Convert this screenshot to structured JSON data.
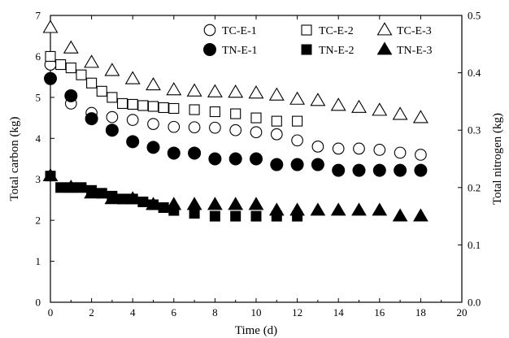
{
  "chart_data": {
    "type": "scatter",
    "xlabel": "Time (d)",
    "ylabel": "Total carbon (kg)",
    "y2label": "Total nitrogen (kg)",
    "xlim": [
      0,
      20
    ],
    "ylim": [
      0,
      7
    ],
    "y2lim": [
      0.0,
      0.5
    ],
    "xticks": [
      "0",
      "2",
      "4",
      "6",
      "8",
      "10",
      "12",
      "14",
      "16",
      "18",
      "20"
    ],
    "yticks": [
      "0",
      "1",
      "2",
      "3",
      "4",
      "5",
      "6",
      "7"
    ],
    "y2ticks": [
      "0.0",
      "0.1",
      "0.2",
      "0.3",
      "0.4",
      "0.5"
    ],
    "grid": false,
    "legend_position": "top-right",
    "series": [
      {
        "name": "TC-E-1",
        "axis": "left",
        "marker": "circle-open",
        "x": [
          0,
          1,
          2,
          3,
          4,
          5,
          6,
          7,
          8,
          9,
          10,
          11,
          12,
          13,
          14,
          15,
          16,
          17,
          18
        ],
        "y": [
          5.8,
          4.85,
          4.62,
          4.52,
          4.45,
          4.35,
          4.28,
          4.27,
          4.26,
          4.2,
          4.15,
          4.1,
          3.95,
          3.8,
          3.75,
          3.75,
          3.72,
          3.65,
          3.6
        ]
      },
      {
        "name": "TC-E-2",
        "axis": "left",
        "marker": "square-open",
        "x": [
          0,
          0.5,
          1,
          1.5,
          2,
          2.5,
          3,
          3.5,
          4,
          4.5,
          5,
          5.5,
          6,
          7,
          8,
          9,
          10,
          11,
          12
        ],
        "y": [
          6.0,
          5.8,
          5.72,
          5.55,
          5.35,
          5.15,
          5.0,
          4.85,
          4.83,
          4.8,
          4.78,
          4.75,
          4.73,
          4.7,
          4.65,
          4.6,
          4.5,
          4.42,
          4.42
        ]
      },
      {
        "name": "TC-E-3",
        "axis": "left",
        "marker": "triangle-open",
        "x": [
          0,
          1,
          2,
          3,
          4,
          5,
          6,
          7,
          8,
          9,
          10,
          11,
          12,
          13,
          14,
          15,
          16,
          17,
          18
        ],
        "y": [
          6.7,
          6.2,
          5.85,
          5.65,
          5.45,
          5.3,
          5.18,
          5.15,
          5.13,
          5.12,
          5.1,
          5.05,
          4.95,
          4.92,
          4.8,
          4.75,
          4.68,
          4.58,
          4.5
        ]
      },
      {
        "name": "TN-E-1",
        "axis": "right",
        "marker": "circle-filled",
        "x": [
          0,
          1,
          2,
          3,
          4,
          5,
          6,
          7,
          8,
          9,
          10,
          11,
          12,
          13,
          14,
          15,
          16,
          17,
          18
        ],
        "y": [
          0.39,
          0.36,
          0.32,
          0.3,
          0.28,
          0.27,
          0.26,
          0.26,
          0.25,
          0.25,
          0.25,
          0.24,
          0.24,
          0.24,
          0.23,
          0.23,
          0.23,
          0.23,
          0.23
        ]
      },
      {
        "name": "TN-E-2",
        "axis": "right",
        "marker": "square-filled",
        "x": [
          0,
          0.5,
          1,
          1.5,
          2,
          2.5,
          3,
          3.5,
          4,
          4.5,
          5,
          5.5,
          6,
          7,
          8,
          9,
          10,
          11,
          12
        ],
        "y": [
          0.22,
          0.2,
          0.2,
          0.2,
          0.195,
          0.19,
          0.185,
          0.18,
          0.18,
          0.175,
          0.17,
          0.165,
          0.16,
          0.155,
          0.15,
          0.15,
          0.15,
          0.15,
          0.15
        ]
      },
      {
        "name": "TN-E-3",
        "axis": "right",
        "marker": "triangle-filled",
        "x": [
          0,
          1,
          2,
          3,
          4,
          5,
          6,
          7,
          8,
          9,
          10,
          11,
          12,
          13,
          14,
          15,
          16,
          17,
          18
        ],
        "y": [
          0.22,
          0.2,
          0.19,
          0.18,
          0.18,
          0.17,
          0.17,
          0.17,
          0.17,
          0.17,
          0.17,
          0.16,
          0.16,
          0.16,
          0.16,
          0.16,
          0.16,
          0.15,
          0.15
        ]
      }
    ]
  }
}
